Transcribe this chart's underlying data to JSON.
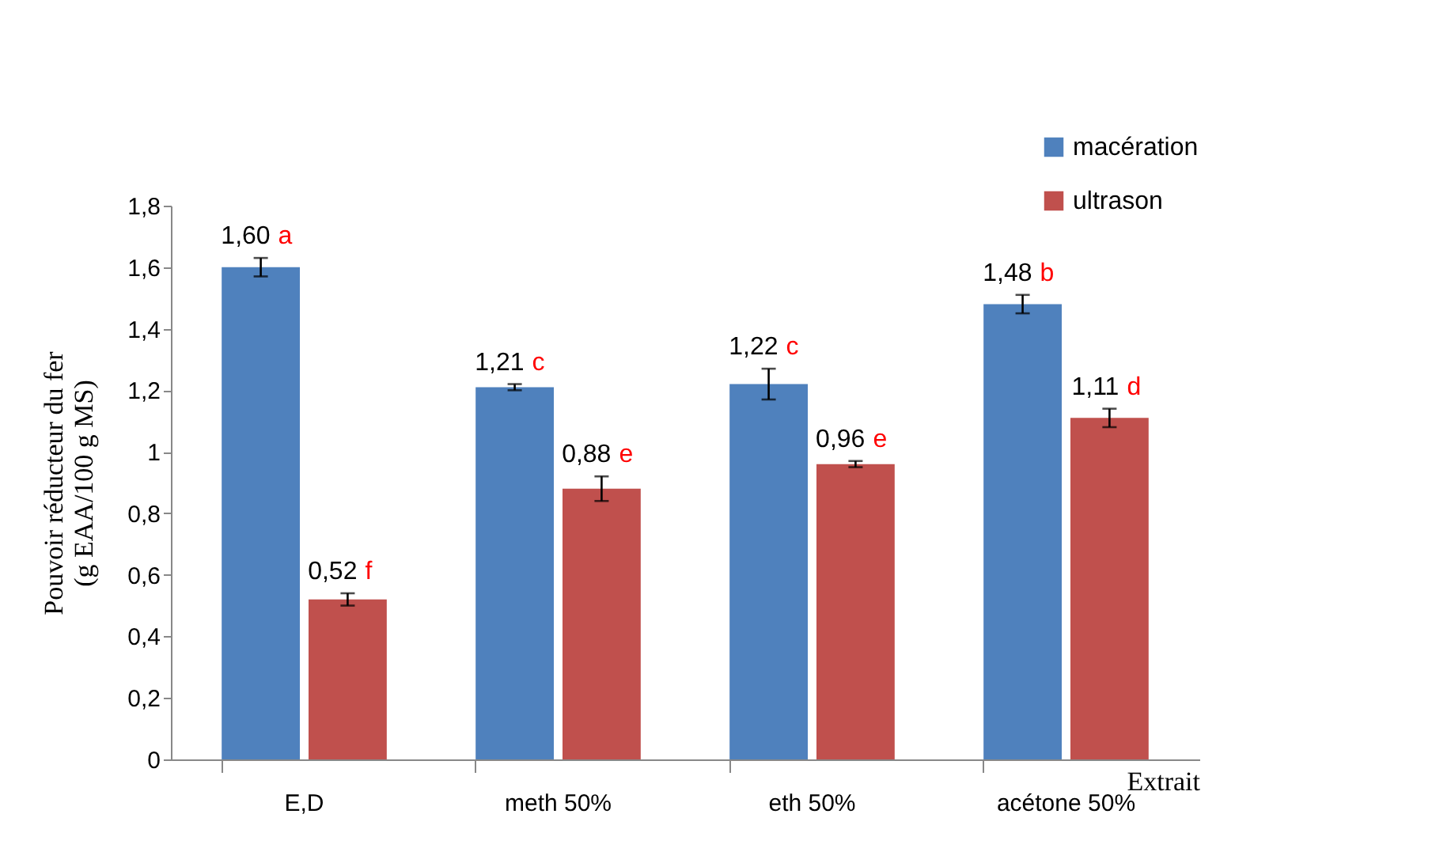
{
  "chart_data": {
    "type": "bar",
    "xlabel": "Extrait",
    "ylabel": "Pouvoir réducteur du fer\n(g EAA/100 g MS)",
    "categories": [
      "E,D",
      "meth 50%",
      "eth 50%",
      "acétone 50%"
    ],
    "series": [
      {
        "name": "macération",
        "color": "#4f81bd",
        "values": [
          1.6,
          1.21,
          1.22,
          1.48
        ],
        "errors": [
          0.03,
          0.01,
          0.05,
          0.03
        ],
        "value_labels": [
          "1,60 a",
          "1,21 c",
          "1,22 c",
          "1,48 b"
        ]
      },
      {
        "name": "ultrason",
        "color": "#c0504d",
        "values": [
          0.52,
          0.88,
          0.96,
          1.11
        ],
        "errors": [
          0.02,
          0.04,
          0.01,
          0.03
        ],
        "value_labels": [
          "0,52 f",
          "0,88 e",
          "0,96 e",
          "1,11 d"
        ]
      }
    ],
    "ylim": [
      0,
      1.8
    ],
    "yticks": [
      0,
      {
        "value": 0.2,
        "label": "0,2"
      },
      {
        "value": 0.4,
        "label": "0,4"
      },
      {
        "value": 0.6,
        "label": "0,6"
      },
      {
        "value": 0.8,
        "label": "0,8"
      },
      1,
      {
        "value": 1.2,
        "label": "1,2"
      },
      {
        "value": 1.4,
        "label": "1,4"
      },
      {
        "value": 1.6,
        "label": "1,6"
      },
      {
        "value": 1.8,
        "label": "1,8"
      }
    ],
    "grid": false,
    "legend": "top right"
  }
}
